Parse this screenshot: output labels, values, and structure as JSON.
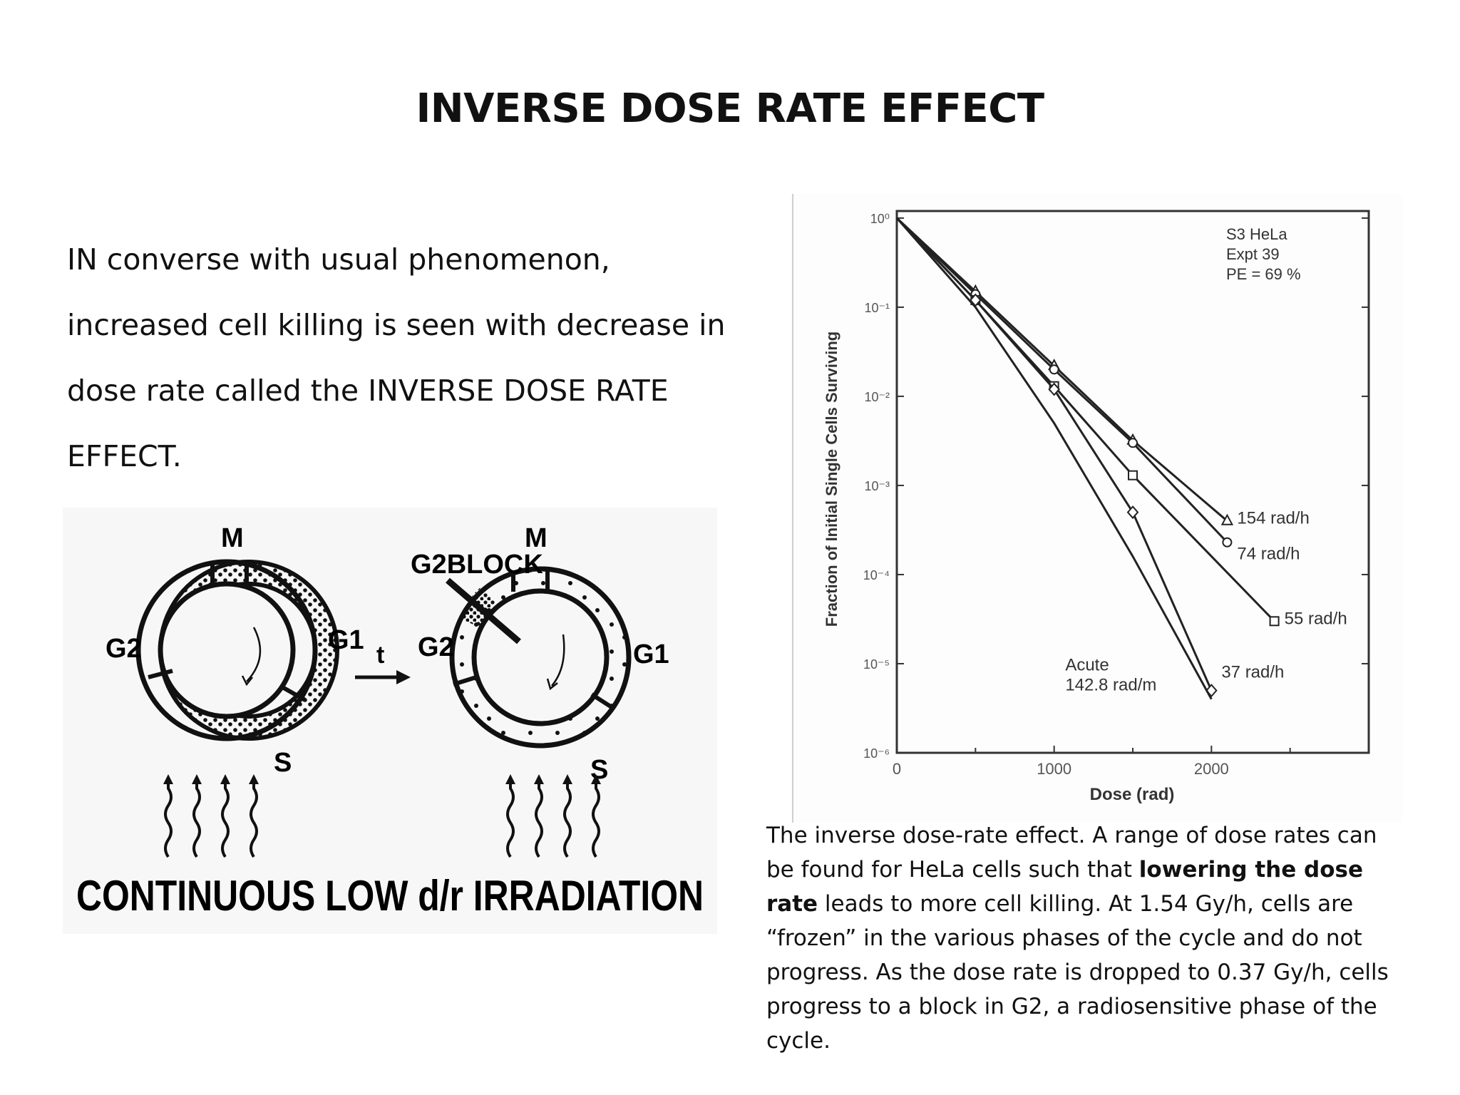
{
  "slide": {
    "title": "INVERSE DOSE RATE EFFECT",
    "intro_lines": [
      "IN converse with usual phenomenon,",
      "increased cell killing is seen with decrease in",
      "dose rate called the INVERSE DOSE RATE",
      "EFFECT."
    ]
  },
  "cell_cycle_figure": {
    "phase_m": "M",
    "phase_g1": "G1",
    "phase_g2": "G2",
    "phase_s": "S",
    "block_label": "G2BLOCK",
    "time_label": "t",
    "bottom_caption": "CONTINUOUS LOW d/r IRRADIATION"
  },
  "chart_data": {
    "type": "line",
    "xlabel": "Dose (rad)",
    "ylabel": "Fraction of Initial Single Cells Surviving",
    "xlim": [
      0,
      3000
    ],
    "ylim": [
      1e-06,
      1
    ],
    "y_scale": "log",
    "x_ticks": [
      "0",
      "1000",
      "2000"
    ],
    "y_ticks": [
      "10⁰",
      "10⁻¹",
      "10⁻²",
      "10⁻³",
      "10⁻⁴",
      "10⁻⁵",
      "10⁻⁶"
    ],
    "legend_text": [
      "S3 HeLa",
      "Expt 39",
      "PE = 69 %"
    ],
    "legend_placement": "top-right",
    "series": [
      {
        "name": "154 rad/h",
        "x": [
          0,
          500,
          1000,
          1500,
          2100
        ],
        "y": [
          1,
          0.15,
          0.022,
          0.0032,
          0.0004
        ]
      },
      {
        "name": "74 rad/h",
        "x": [
          0,
          500,
          1000,
          1500,
          2100
        ],
        "y": [
          1,
          0.14,
          0.02,
          0.003,
          0.00023
        ]
      },
      {
        "name": "55 rad/h",
        "x": [
          0,
          500,
          1000,
          1500,
          2400
        ],
        "y": [
          1,
          0.12,
          0.013,
          0.0013,
          3e-05
        ]
      },
      {
        "name": "37 rad/h",
        "x": [
          0,
          500,
          1000,
          1500,
          2000
        ],
        "y": [
          1,
          0.12,
          0.012,
          0.0005,
          5e-06
        ]
      },
      {
        "name": "Acute 142.8 rad/m",
        "x": [
          0,
          500,
          1000,
          1500,
          2000
        ],
        "y": [
          1,
          0.1,
          0.005,
          0.00016,
          4e-06
        ]
      }
    ]
  },
  "caption": {
    "part1": "The inverse dose-rate effect. A range of dose rates can be found for HeLa cells such that ",
    "bold1": "lowering the dose rate",
    "part2": " leads to more cell killing. At 1.54 Gy/h, cells are “frozen” in the various phases of the cycle and do not progress. As the dose rate is dropped to 0.37 Gy/h, cells progress to a block in G2, a radiosensitive phase of the cycle."
  }
}
